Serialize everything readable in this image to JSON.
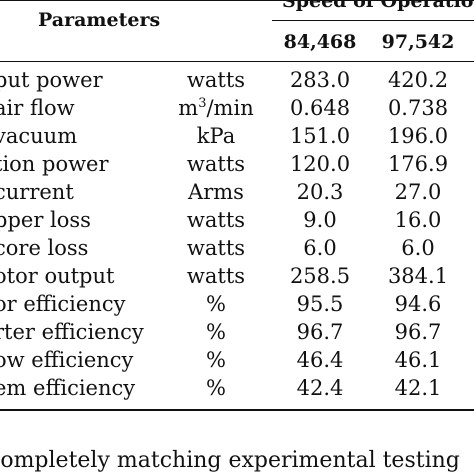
{
  "table": {
    "header": {
      "parameters": "Parameters",
      "speed_group": "Speed of Operation",
      "speed_1": "84,468",
      "speed_2": "97,542"
    },
    "rows": [
      {
        "param": "put power",
        "unit": "watts",
        "v1": "283.0",
        "v2": "420.2"
      },
      {
        "param": "air flow",
        "unit_base": "m",
        "unit_sup": "3",
        "unit_rest": "/min",
        "v1": "0.648",
        "v2": "0.738"
      },
      {
        "param": "vacuum",
        "unit": "kPa",
        "v1": "151.0",
        "v2": "196.0"
      },
      {
        "param": "tion power",
        "unit": "watts",
        "v1": "120.0",
        "v2": "176.9"
      },
      {
        "param": "current",
        "unit": "Arms",
        "v1": "20.3",
        "v2": "27.0"
      },
      {
        "param": "pper loss",
        "unit": "watts",
        "v1": "9.0",
        "v2": "16.0"
      },
      {
        "param": "core loss",
        "unit": "watts",
        "v1": "6.0",
        "v2": "6.0"
      },
      {
        "param": "otor output",
        "unit": "watts",
        "v1": "258.5",
        "v2": "384.1"
      },
      {
        "param": "or efficiency",
        "unit": "%",
        "v1": "95.5",
        "v2": "94.6"
      },
      {
        "param": "rter efficiency",
        "unit": "%",
        "v1": "96.7",
        "v2": "96.7"
      },
      {
        "param": "ow efficiency",
        "unit": "%",
        "v1": "46.4",
        "v2": "46.1"
      },
      {
        "param": "em efficiency",
        "unit": "%",
        "v1": "42.4",
        "v2": "42.1"
      }
    ]
  },
  "footnote": "completely matching experimental testing"
}
